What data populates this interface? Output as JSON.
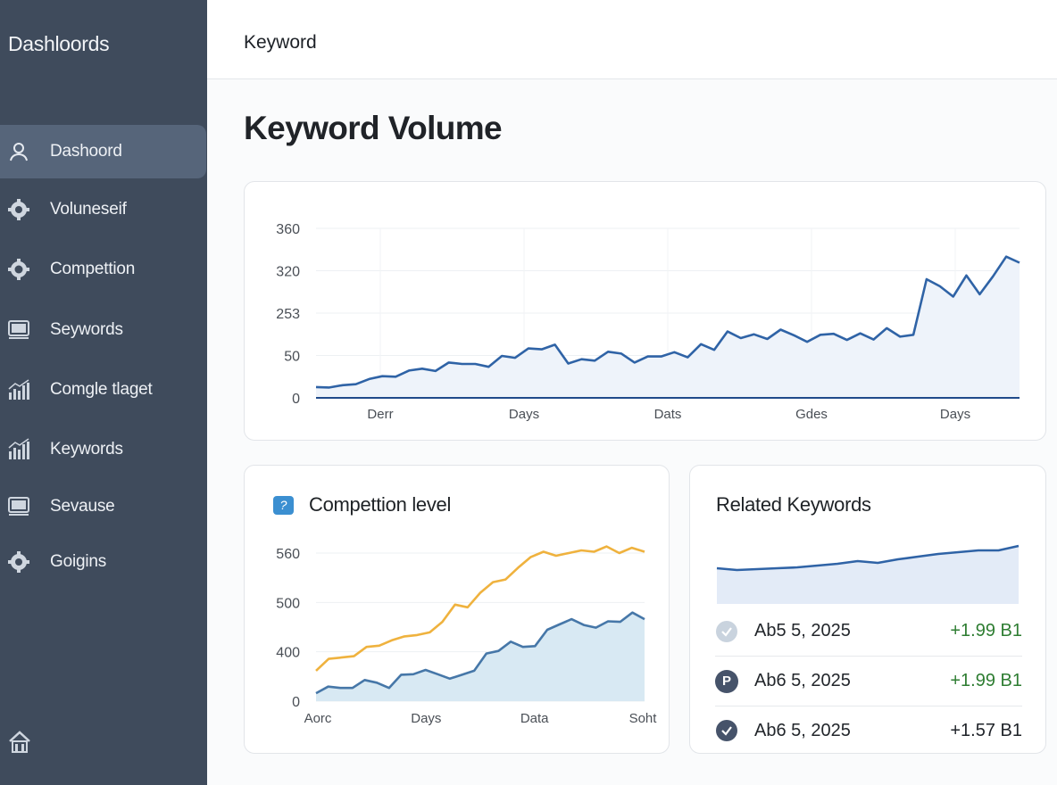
{
  "sidebar": {
    "brand": "Dashloords",
    "items": [
      {
        "label": "Dashoord",
        "icon": "user-icon",
        "active": true
      },
      {
        "label": "Voluneseif",
        "icon": "gear-icon",
        "active": false
      },
      {
        "label": "Compettion",
        "icon": "gear-icon",
        "active": false
      },
      {
        "label": "Seywords",
        "icon": "monitor-icon",
        "active": false
      },
      {
        "label": "Comgle tlaget",
        "icon": "bar-chart-icon",
        "active": false
      },
      {
        "label": "Keywords",
        "icon": "bar-chart-icon",
        "active": false
      },
      {
        "label": "Sevause",
        "icon": "monitor-icon",
        "active": false
      },
      {
        "label": "Goigins",
        "icon": "gear-icon",
        "active": false
      }
    ],
    "footer_icon": "home-icon"
  },
  "header": {
    "title": "Keyword"
  },
  "page": {
    "title": "Keyword Volume"
  },
  "competition": {
    "title": "Compettion level",
    "badge": "?"
  },
  "related": {
    "title": "Related Keywords",
    "rows": [
      {
        "date": "Ab5 5, 2025",
        "change": "+1.99 B1",
        "badge": "check-icon",
        "badge_color": "#c9d3de",
        "change_color": "#2e7d32"
      },
      {
        "date": "Ab6 5, 2025",
        "change": "+1.99 B1",
        "badge": "P",
        "badge_color": "#46536a",
        "change_color": "#2e7d32"
      },
      {
        "date": "Ab6 5, 2025",
        "change": "+1.57 B1",
        "badge": "check-icon",
        "badge_color": "#46536a",
        "change_color": "#22262b"
      }
    ]
  },
  "colors": {
    "sidebar_bg": "#3f4b5c",
    "primary_line": "#2f63a6",
    "secondary_line": "#efb23e",
    "area_fill": "#eef3fa",
    "comp_area_fill": "#d8e9f3"
  },
  "chart_data": [
    {
      "type": "area",
      "title": "Keyword Volume",
      "y_tick_labels": [
        "0",
        "50",
        "253",
        "320",
        "360"
      ],
      "x_tick_labels": [
        "Derr",
        "Days",
        "Dats",
        "Gdes",
        "Days"
      ],
      "ylim": [
        0,
        360
      ],
      "grid": true,
      "series": [
        {
          "values": [
            23,
            22,
            27,
            29,
            40,
            46,
            45,
            58,
            62,
            57,
            75,
            72,
            72,
            66,
            89,
            85,
            105,
            103,
            113,
            73,
            82,
            79,
            98,
            94,
            75,
            88,
            88,
            97,
            86,
            114,
            102,
            141,
            127,
            135,
            125,
            145,
            133,
            119,
            134,
            136,
            123,
            137,
            124,
            148,
            130,
            134,
            252,
            237,
            215,
            260,
            220,
            258,
            300,
            287
          ]
        }
      ]
    },
    {
      "type": "area",
      "title": "Compettion level",
      "y_tick_labels": [
        "0",
        "400",
        "500",
        "560"
      ],
      "x_tick_labels": [
        "Aorc",
        "Days",
        "Data",
        "Soht"
      ],
      "ylim": [
        0,
        560
      ],
      "grid": true,
      "series": [
        {
          "values": [
            115,
            160,
            165,
            170,
            205,
            210,
            230,
            245,
            250,
            260,
            300,
            365,
            355,
            410,
            450,
            460,
            505,
            545,
            565,
            550,
            560,
            570,
            565,
            585,
            560,
            580,
            565
          ]
        },
        {
          "values": [
            30,
            55,
            50,
            50,
            80,
            70,
            50,
            100,
            102,
            118,
            102,
            85,
            100,
            115,
            180,
            190,
            225,
            205,
            208,
            270,
            290,
            310,
            288,
            278,
            302,
            300,
            335,
            310
          ]
        }
      ]
    },
    {
      "type": "area",
      "title": "Related Keywords",
      "series": [
        {
          "values": [
            40,
            38,
            39,
            40,
            41,
            43,
            45,
            48,
            46,
            50,
            53,
            56,
            58,
            60,
            60,
            65
          ]
        }
      ]
    }
  ]
}
